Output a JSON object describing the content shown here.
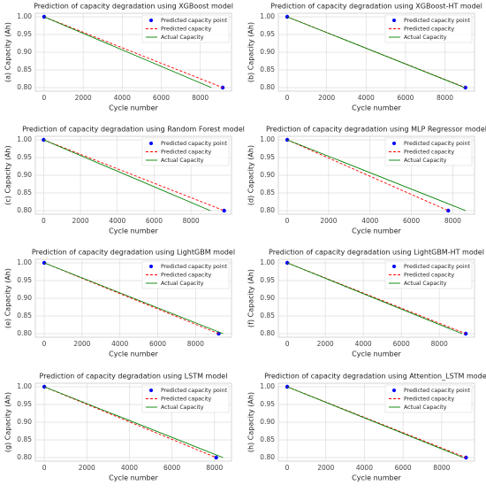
{
  "chart_data": [
    {
      "type": "line",
      "title": "Prediction of capacity degradation using XGBoost model",
      "ylabel": "(a) Capacity (Ah)",
      "xlabel": "Cycle number",
      "xlim": [
        -450,
        9600
      ],
      "xticks": [
        0,
        2000,
        4000,
        6000,
        8000
      ],
      "ylim": [
        0.79,
        1.01
      ],
      "yticks": [
        {
          "value": 0.8,
          "label": "0.80"
        },
        {
          "value": 0.85,
          "label": "0.85"
        },
        {
          "value": 0.9,
          "label": "0.90"
        },
        {
          "value": 0.95,
          "label": "0.95"
        },
        {
          "value": 1.0,
          "label": "1.00"
        }
      ],
      "grid": true,
      "legend": "upper right",
      "series": [
        {
          "name": "Predicted capacity point",
          "type": "scatter",
          "color": "#0000ff",
          "x": [
            0,
            9150
          ],
          "values": [
            1.0,
            0.8
          ]
        },
        {
          "name": "Predicted capacity",
          "type": "dashed",
          "color": "#ff0000",
          "x": [
            0,
            9150
          ],
          "values": [
            1.0,
            0.8
          ]
        },
        {
          "name": "Actual Capacity",
          "type": "solid",
          "color": "#008000",
          "x": [
            0,
            8570
          ],
          "values": [
            1.0,
            0.8
          ]
        }
      ]
    },
    {
      "type": "line",
      "title": "Prediction of capacity degradation using XGBoost-HT model",
      "ylabel": "(b) Capacity (Ah)",
      "xlabel": "Cycle number",
      "xlim": [
        -450,
        9500
      ],
      "xticks": [
        0,
        2000,
        4000,
        6000,
        8000
      ],
      "ylim": [
        0.79,
        1.01
      ],
      "yticks": [
        {
          "value": 0.8,
          "label": "0.80"
        },
        {
          "value": 0.85,
          "label": "0.85"
        },
        {
          "value": 0.9,
          "label": "0.90"
        },
        {
          "value": 0.95,
          "label": "0.95"
        },
        {
          "value": 1.0,
          "label": "1.00"
        }
      ],
      "grid": true,
      "legend": "upper right",
      "series": [
        {
          "name": "Predicted capacity point",
          "type": "scatter",
          "color": "#0000ff",
          "x": [
            0,
            9040
          ],
          "values": [
            1.0,
            0.8
          ]
        },
        {
          "name": "Predicted capacity",
          "type": "dashed",
          "color": "#ff0000",
          "x": [
            0,
            9040
          ],
          "values": [
            1.0,
            0.8
          ]
        },
        {
          "name": "Actual Capacity",
          "type": "solid",
          "color": "#008000",
          "x": [
            0,
            9000
          ],
          "values": [
            1.0,
            0.8
          ]
        }
      ]
    },
    {
      "type": "line",
      "title": "Prediction of capacity degradation using Random Forest model",
      "ylabel": "(c) Capacity (Ah)",
      "xlabel": "Cycle number",
      "xlim": [
        -450,
        10200
      ],
      "xticks": [
        0,
        2000,
        4000,
        6000,
        8000
      ],
      "ylim": [
        0.79,
        1.01
      ],
      "yticks": [
        {
          "value": 0.8,
          "label": "0.80"
        },
        {
          "value": 0.85,
          "label": "0.85"
        },
        {
          "value": 0.9,
          "label": "0.90"
        },
        {
          "value": 0.95,
          "label": "0.95"
        },
        {
          "value": 1.0,
          "label": "1.00"
        }
      ],
      "grid": true,
      "legend": "upper right",
      "series": [
        {
          "name": "Predicted capacity point",
          "type": "scatter",
          "color": "#0000ff",
          "x": [
            0,
            9800
          ],
          "values": [
            1.0,
            0.8
          ]
        },
        {
          "name": "Predicted capacity",
          "type": "dashed",
          "color": "#ff0000",
          "x": [
            0,
            9800
          ],
          "values": [
            1.0,
            0.8
          ]
        },
        {
          "name": "Actual Capacity",
          "type": "solid",
          "color": "#008000",
          "x": [
            0,
            9050
          ],
          "values": [
            1.0,
            0.8
          ]
        }
      ]
    },
    {
      "type": "line",
      "title": "Prediction of capacity degradation using MLP Regressor model",
      "ylabel": "(d) Capacity (Ah)",
      "xlabel": "Cycle number",
      "xlim": [
        -430,
        9050
      ],
      "xticks": [
        0,
        2000,
        4000,
        6000,
        8000
      ],
      "ylim": [
        0.79,
        1.01
      ],
      "yticks": [
        {
          "value": 0.8,
          "label": "0.80"
        },
        {
          "value": 0.85,
          "label": "0.85"
        },
        {
          "value": 0.9,
          "label": "0.90"
        },
        {
          "value": 0.95,
          "label": "0.95"
        },
        {
          "value": 1.0,
          "label": "1.00"
        }
      ],
      "grid": true,
      "legend": "upper right",
      "series": [
        {
          "name": "Predicted capacity point",
          "type": "scatter",
          "color": "#0000ff",
          "x": [
            0,
            7780
          ],
          "values": [
            1.0,
            0.8
          ]
        },
        {
          "name": "Predicted capacity",
          "type": "dashed",
          "color": "#ff0000",
          "x": [
            0,
            7780
          ],
          "values": [
            1.0,
            0.8
          ]
        },
        {
          "name": "Actual Capacity",
          "type": "solid",
          "color": "#008000",
          "x": [
            0,
            8620
          ],
          "values": [
            1.0,
            0.8
          ]
        }
      ]
    },
    {
      "type": "line",
      "title": "Prediction of capacity degradation using LightGBM model",
      "ylabel": "(e) Capacity (Ah)",
      "xlabel": "Cycle number",
      "xlim": [
        -470,
        9900
      ],
      "xticks": [
        0,
        2000,
        4000,
        6000,
        8000
      ],
      "ylim": [
        0.79,
        1.01
      ],
      "yticks": [
        {
          "value": 0.8,
          "label": "0.80"
        },
        {
          "value": 0.85,
          "label": "0.85"
        },
        {
          "value": 0.9,
          "label": "0.90"
        },
        {
          "value": 0.95,
          "label": "0.95"
        },
        {
          "value": 1.0,
          "label": "1.00"
        }
      ],
      "grid": true,
      "legend": "upper right",
      "series": [
        {
          "name": "Predicted capacity point",
          "type": "scatter",
          "color": "#0000ff",
          "x": [
            0,
            9220
          ],
          "values": [
            1.0,
            0.8
          ]
        },
        {
          "name": "Predicted capacity",
          "type": "dashed",
          "color": "#ff0000",
          "x": [
            0,
            9220
          ],
          "values": [
            1.0,
            0.8
          ]
        },
        {
          "name": "Actual Capacity",
          "type": "solid",
          "color": "#008000",
          "x": [
            0,
            9450
          ],
          "values": [
            1.0,
            0.8
          ]
        }
      ]
    },
    {
      "type": "line",
      "title": "Prediction of capacity degradation using LightGBM-HT model",
      "ylabel": "(f) Capacity (Ah)",
      "xlabel": "Cycle number",
      "xlim": [
        -470,
        9850
      ],
      "xticks": [
        0,
        2000,
        4000,
        6000,
        8000
      ],
      "ylim": [
        0.79,
        1.01
      ],
      "yticks": [
        {
          "value": 0.8,
          "label": "0.80"
        },
        {
          "value": 0.85,
          "label": "0.85"
        },
        {
          "value": 0.9,
          "label": "0.90"
        },
        {
          "value": 0.95,
          "label": "0.95"
        },
        {
          "value": 1.0,
          "label": "1.00"
        }
      ],
      "grid": true,
      "legend": "upper right",
      "series": [
        {
          "name": "Predicted capacity point",
          "type": "scatter",
          "color": "#0000ff",
          "x": [
            0,
            9390
          ],
          "values": [
            1.0,
            0.8
          ]
        },
        {
          "name": "Predicted capacity",
          "type": "dashed",
          "color": "#ff0000",
          "x": [
            0,
            9390
          ],
          "values": [
            1.0,
            0.8
          ]
        },
        {
          "name": "Actual Capacity",
          "type": "solid",
          "color": "#008000",
          "x": [
            0,
            9200
          ],
          "values": [
            1.0,
            0.8
          ]
        }
      ]
    },
    {
      "type": "line",
      "title": "Prediction of capacity degradation using LSTM model",
      "ylabel": "(g) Capacity (Ah)",
      "xlabel": "Cycle number",
      "xlim": [
        -420,
        8800
      ],
      "xticks": [
        0,
        2000,
        4000,
        6000,
        8000
      ],
      "ylim": [
        0.79,
        1.01
      ],
      "yticks": [
        {
          "value": 0.8,
          "label": "0.80"
        },
        {
          "value": 0.85,
          "label": "0.85"
        },
        {
          "value": 0.9,
          "label": "0.90"
        },
        {
          "value": 0.95,
          "label": "0.95"
        },
        {
          "value": 1.0,
          "label": "1.00"
        }
      ],
      "grid": true,
      "legend": "upper right",
      "series": [
        {
          "name": "Predicted capacity point",
          "type": "scatter",
          "color": "#0000ff",
          "x": [
            0,
            8080
          ],
          "values": [
            1.0,
            0.8
          ]
        },
        {
          "name": "Predicted capacity",
          "type": "dashed",
          "color": "#ff0000",
          "x": [
            0,
            8080
          ],
          "values": [
            1.0,
            0.8
          ]
        },
        {
          "name": "Actual Capacity",
          "type": "solid",
          "color": "#008000",
          "x": [
            0,
            8400
          ],
          "values": [
            1.0,
            0.8
          ]
        }
      ]
    },
    {
      "type": "line",
      "title": "Prediction of capacity degradation using Attention_LSTM model",
      "ylabel": "(h) Capacity (Ah)",
      "xlabel": "Cycle number",
      "xlim": [
        -460,
        9700
      ],
      "xticks": [
        0,
        2000,
        4000,
        6000,
        8000
      ],
      "ylim": [
        0.79,
        1.01
      ],
      "yticks": [
        {
          "value": 0.8,
          "label": "0.80"
        },
        {
          "value": 0.85,
          "label": "0.85"
        },
        {
          "value": 0.9,
          "label": "0.90"
        },
        {
          "value": 0.95,
          "label": "0.95"
        },
        {
          "value": 1.0,
          "label": "1.00"
        }
      ],
      "grid": true,
      "legend": "upper right",
      "series": [
        {
          "name": "Predicted capacity point",
          "type": "scatter",
          "color": "#0000ff",
          "x": [
            0,
            9260
          ],
          "values": [
            1.0,
            0.8
          ]
        },
        {
          "name": "Predicted capacity",
          "type": "dashed",
          "color": "#ff0000",
          "x": [
            0,
            9260
          ],
          "values": [
            1.0,
            0.8
          ]
        },
        {
          "name": "Actual Capacity",
          "type": "solid",
          "color": "#008000",
          "x": [
            0,
            9120
          ],
          "values": [
            1.0,
            0.8
          ]
        }
      ]
    }
  ]
}
